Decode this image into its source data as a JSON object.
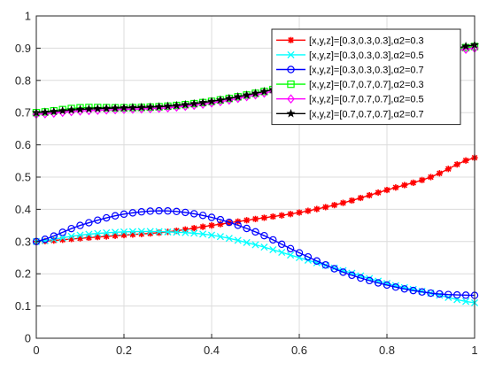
{
  "chart_data": {
    "type": "line",
    "title": "",
    "xlabel": "",
    "ylabel": "",
    "xlim": [
      0,
      1
    ],
    "ylim": [
      0,
      1
    ],
    "xticks": [
      "0",
      "0.2",
      "0.4",
      "0.6",
      "0.8",
      "1"
    ],
    "yticks": [
      "0",
      "0.1",
      "0.2",
      "0.3",
      "0.4",
      "0.5",
      "0.6",
      "0.7",
      "0.8",
      "0.9",
      "1"
    ],
    "grid": true,
    "legend_position": "top-right",
    "x": [
      0,
      0.1,
      0.2,
      0.3,
      0.4,
      0.5,
      0.6,
      0.7,
      0.8,
      0.9,
      1.0
    ],
    "series": [
      {
        "name": "[x,y,z]=[0.3,0.3,0.3],α2=0.3",
        "color": "#ff0000",
        "marker": "asterisk",
        "values": [
          0.3,
          0.31,
          0.32,
          0.33,
          0.35,
          0.37,
          0.39,
          0.42,
          0.46,
          0.5,
          0.56
        ]
      },
      {
        "name": "[x,y,z]=[0.3,0.3,0.3],α2=0.5",
        "color": "#00ffff",
        "marker": "x",
        "values": [
          0.3,
          0.32,
          0.33,
          0.33,
          0.32,
          0.29,
          0.25,
          0.21,
          0.17,
          0.14,
          0.11
        ]
      },
      {
        "name": "[x,y,z]=[0.3,0.3,0.3],α2=0.7",
        "color": "#0000ff",
        "marker": "circle",
        "values": [
          0.3,
          0.35,
          0.385,
          0.395,
          0.375,
          0.33,
          0.265,
          0.205,
          0.165,
          0.14,
          0.133
        ]
      },
      {
        "name": "[x,y,z]=[0.7,0.7,0.7],α2=0.3",
        "color": "#00ff00",
        "marker": "square",
        "values": [
          0.7,
          0.715,
          0.715,
          0.72,
          0.735,
          0.76,
          0.79,
          0.82,
          0.85,
          0.88,
          0.905
        ]
      },
      {
        "name": "[x,y,z]=[0.7,0.7,0.7],α2=0.5",
        "color": "#ff00ff",
        "marker": "diamond",
        "values": [
          0.695,
          0.705,
          0.71,
          0.715,
          0.73,
          0.755,
          0.785,
          0.815,
          0.845,
          0.875,
          0.9
        ]
      },
      {
        "name": "[x,y,z]=[0.7,0.7,0.7],α2=0.7",
        "color": "#000000",
        "marker": "star",
        "values": [
          0.7,
          0.71,
          0.715,
          0.72,
          0.735,
          0.76,
          0.79,
          0.82,
          0.85,
          0.88,
          0.91
        ]
      }
    ]
  }
}
